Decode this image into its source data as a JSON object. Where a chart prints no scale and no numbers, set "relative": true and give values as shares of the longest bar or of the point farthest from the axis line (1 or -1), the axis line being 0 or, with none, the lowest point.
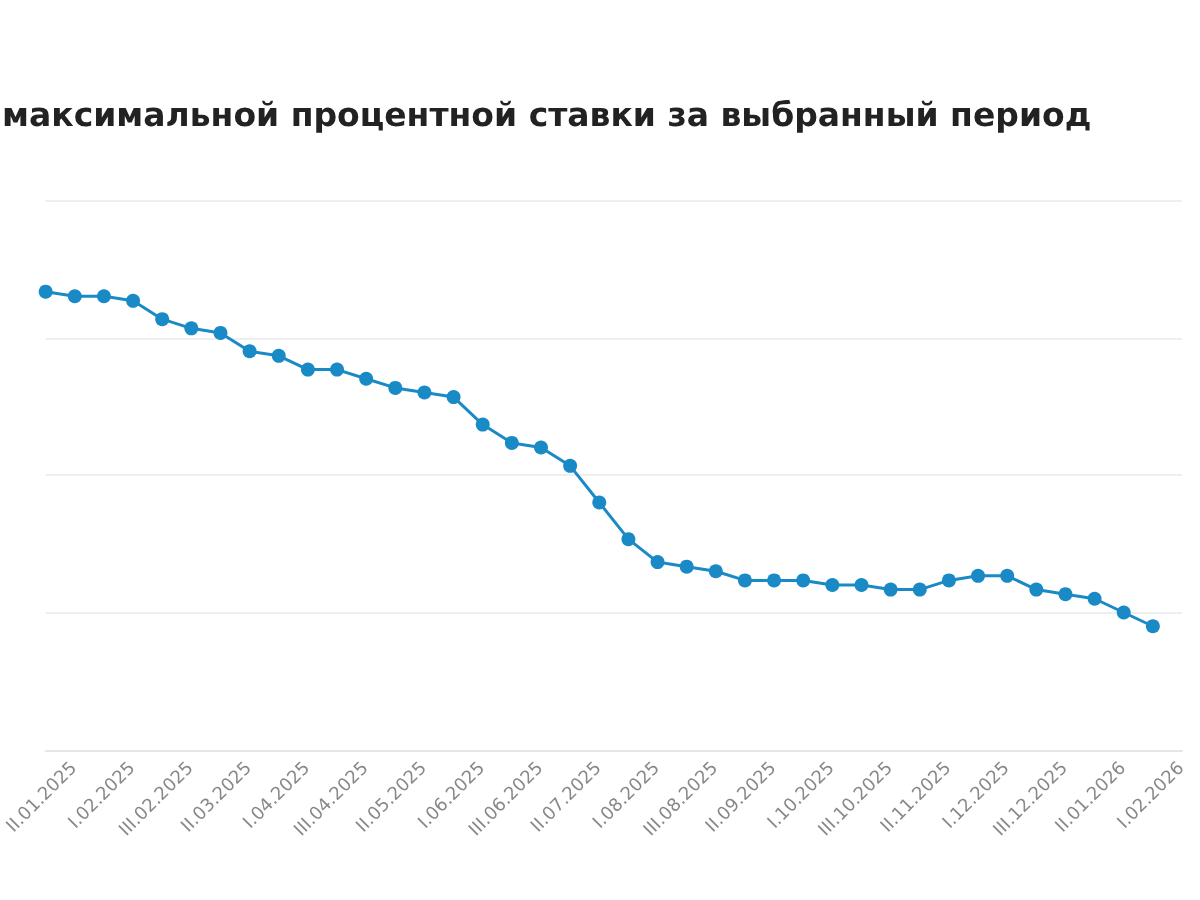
{
  "chart_data": {
    "type": "line",
    "title": "максимальной процентной ставки за выбранный период",
    "categories": [
      null,
      "II.01.2025",
      null,
      "I.02.2025",
      null,
      "III.02.2025",
      null,
      "II.03.2025",
      null,
      "I.04.2025",
      null,
      "III.04.2025",
      null,
      "II.05.2025",
      null,
      "I.06.2025",
      null,
      "III.06.2025",
      null,
      "II.07.2025",
      null,
      "I.08.2025",
      null,
      "III.08.2025",
      null,
      "II.09.2025",
      null,
      "I.10.2025",
      null,
      "III.10.2025",
      null,
      "II.11.2025",
      null,
      "I.12.2025",
      null,
      "III.12.2025",
      null,
      "II.01.2026",
      null,
      "I.02.2026"
    ],
    "series": [
      {
        "color": "#1a8ac6",
        "values": [
          1,
          0.99,
          0.99,
          0.98,
          0.94,
          0.92,
          0.91,
          0.87,
          0.86,
          0.83,
          0.83,
          0.81,
          0.79,
          0.78,
          0.77,
          0.71,
          0.67,
          0.66,
          0.62,
          0.54,
          0.46,
          0.41,
          0.4,
          0.39,
          0.37,
          0.37,
          0.37,
          0.36,
          0.36,
          0.35,
          0.35,
          0.37,
          0.38,
          0.38,
          0.35,
          0.34,
          0.33,
          0.3,
          0.27,
          null
        ]
      }
    ],
    "relative": true,
    "grid": "y",
    "marker": "circle",
    "line_style": "solid"
  }
}
